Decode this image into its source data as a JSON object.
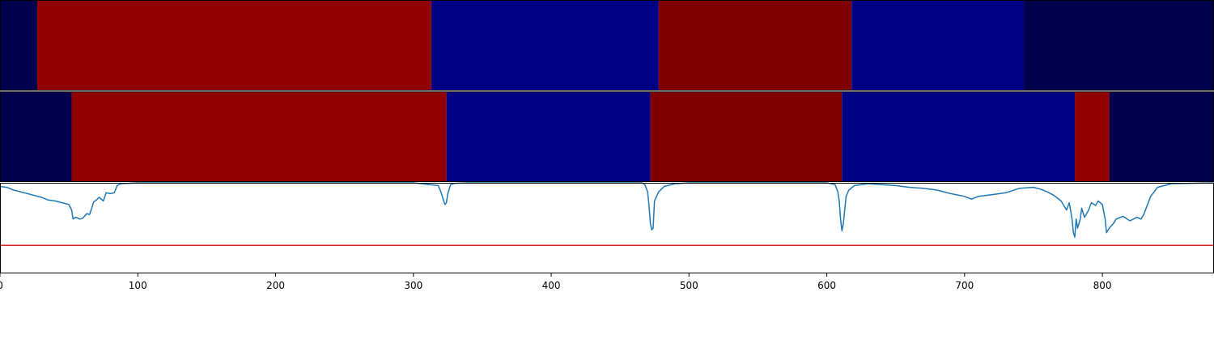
{
  "chart_data": [
    {
      "type": "heatmap",
      "x_range": [
        0,
        881
      ],
      "segments": [
        {
          "start": 0,
          "end": 27,
          "color": "#00004c"
        },
        {
          "start": 27,
          "end": 313,
          "color": "#920000"
        },
        {
          "start": 313,
          "end": 478,
          "color": "#000084"
        },
        {
          "start": 478,
          "end": 618,
          "color": "#800000"
        },
        {
          "start": 618,
          "end": 743,
          "color": "#000084"
        },
        {
          "start": 743,
          "end": 881,
          "color": "#00004c"
        }
      ]
    },
    {
      "type": "heatmap",
      "x_range": [
        0,
        881
      ],
      "segments": [
        {
          "start": 0,
          "end": 52,
          "color": "#00004c"
        },
        {
          "start": 52,
          "end": 324,
          "color": "#920000"
        },
        {
          "start": 324,
          "end": 472,
          "color": "#000084"
        },
        {
          "start": 472,
          "end": 611,
          "color": "#800000"
        },
        {
          "start": 611,
          "end": 780,
          "color": "#000084"
        },
        {
          "start": 780,
          "end": 805,
          "color": "#920000"
        },
        {
          "start": 805,
          "end": 881,
          "color": "#00004c"
        }
      ]
    },
    {
      "type": "line",
      "xlim": [
        0,
        881
      ],
      "ylim": [
        0,
        1
      ],
      "xticks": [
        0,
        100,
        200,
        300,
        400,
        500,
        600,
        700,
        800
      ],
      "xtick_labels": [
        "0",
        "100",
        "200",
        "300",
        "400",
        "500",
        "600",
        "700",
        "800"
      ],
      "series": [
        {
          "color": "#1f77b4",
          "x": [
            0,
            5,
            10,
            15,
            20,
            25,
            30,
            35,
            40,
            45,
            50,
            52,
            53,
            55,
            58,
            60,
            63,
            65,
            67,
            68,
            70,
            72,
            75,
            77,
            80,
            83,
            85,
            88,
            100,
            150,
            200,
            250,
            300,
            318,
            320,
            322,
            323,
            324,
            325,
            327,
            330,
            340,
            400,
            460,
            465,
            466,
            467,
            468,
            470,
            471,
            472,
            473,
            474,
            475,
            478,
            482,
            490,
            500,
            560,
            600,
            606,
            608,
            609,
            610,
            611,
            612,
            614,
            616,
            620,
            630,
            650,
            660,
            670,
            680,
            690,
            700,
            705,
            710,
            720,
            730,
            740,
            750,
            755,
            760,
            765,
            770,
            774,
            776,
            778,
            779,
            780,
            781,
            782,
            784,
            785,
            787,
            790,
            792,
            795,
            797,
            800,
            802,
            803,
            805,
            808,
            810,
            815,
            820,
            825,
            828,
            830,
            835,
            840,
            850,
            881
          ],
          "y": [
            0.96,
            0.95,
            0.92,
            0.9,
            0.88,
            0.86,
            0.84,
            0.81,
            0.8,
            0.78,
            0.76,
            0.7,
            0.6,
            0.62,
            0.6,
            0.61,
            0.66,
            0.65,
            0.74,
            0.79,
            0.81,
            0.84,
            0.8,
            0.89,
            0.88,
            0.89,
            0.97,
            0.99,
            1.0,
            1.0,
            1.0,
            1.0,
            1.0,
            0.97,
            0.9,
            0.8,
            0.76,
            0.78,
            0.88,
            0.98,
            0.995,
            1.0,
            1.0,
            1.0,
            1.0,
            1.0,
            0.99,
            0.98,
            0.9,
            0.75,
            0.55,
            0.48,
            0.5,
            0.8,
            0.9,
            0.96,
            0.99,
            1.0,
            1.0,
            1.0,
            0.98,
            0.9,
            0.8,
            0.6,
            0.47,
            0.55,
            0.85,
            0.92,
            0.97,
            0.99,
            0.97,
            0.95,
            0.94,
            0.92,
            0.88,
            0.85,
            0.82,
            0.85,
            0.87,
            0.89,
            0.94,
            0.95,
            0.93,
            0.9,
            0.86,
            0.8,
            0.7,
            0.78,
            0.6,
            0.45,
            0.4,
            0.6,
            0.5,
            0.6,
            0.72,
            0.62,
            0.7,
            0.78,
            0.75,
            0.8,
            0.76,
            0.6,
            0.45,
            0.5,
            0.55,
            0.6,
            0.63,
            0.58,
            0.62,
            0.6,
            0.65,
            0.85,
            0.95,
            0.99,
            1.0
          ]
        },
        {
          "color": "#d62728",
          "x": [
            0,
            881
          ],
          "y": [
            0.31,
            0.31
          ]
        }
      ]
    }
  ]
}
